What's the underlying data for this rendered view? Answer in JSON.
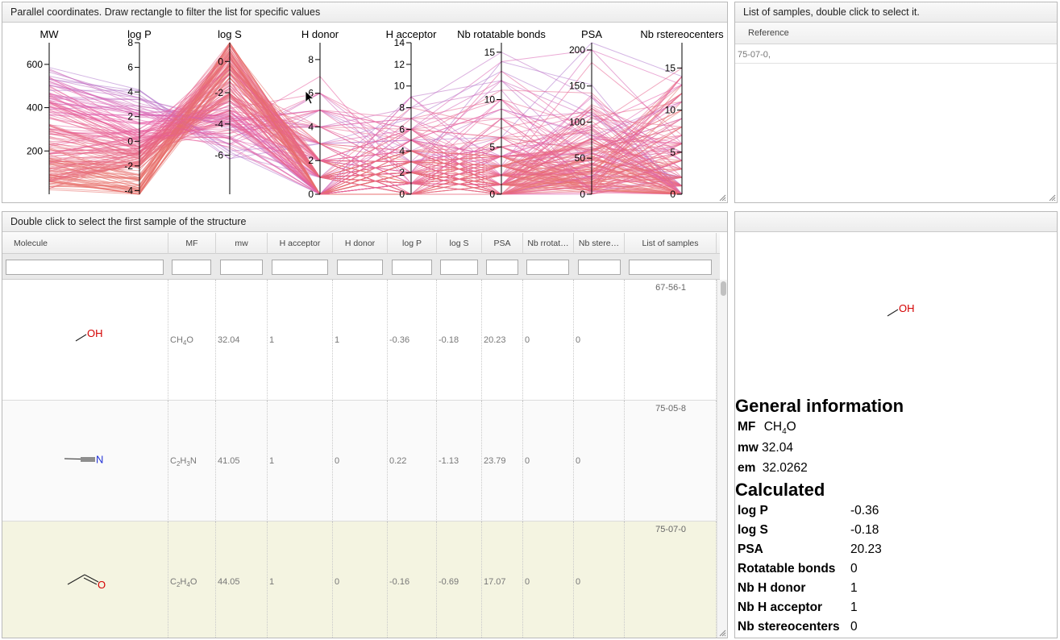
{
  "pc_panel": {
    "title": "Parallel coordinates. Draw rectangle to filter the list for specific values"
  },
  "samples_panel": {
    "title": "List of samples, double click to select it.",
    "column_header": "Reference",
    "rows": [
      "75-07-0,"
    ]
  },
  "table_panel": {
    "title": "Double click to select the first sample of the structure",
    "columns": [
      "Molecule",
      "MF",
      "mw",
      "H acceptor",
      "H donor",
      "log P",
      "log S",
      "PSA",
      "Nb rrotat…",
      "Nb stere…",
      "List of samples"
    ],
    "rows": [
      {
        "mol_label": "OH",
        "mf_parts": [
          [
            "CH",
            "4"
          ],
          [
            "O",
            ""
          ]
        ],
        "mw": "32.04",
        "h_acceptor": "1",
        "h_donor": "1",
        "logp": "-0.36",
        "logs": "-0.18",
        "psa": "20.23",
        "rot": "0",
        "stereo": "0",
        "samples": "67-56-1",
        "selected": false
      },
      {
        "mol_label": "N",
        "mf_parts": [
          [
            "C",
            "2"
          ],
          [
            "H",
            "3"
          ],
          [
            "N",
            ""
          ]
        ],
        "mw": "41.05",
        "h_acceptor": "1",
        "h_donor": "0",
        "logp": "0.22",
        "logs": "-1.13",
        "psa": "23.79",
        "rot": "0",
        "stereo": "0",
        "samples": "75-05-8",
        "selected": false
      },
      {
        "mol_label": "O",
        "mf_parts": [
          [
            "C",
            "2"
          ],
          [
            "H",
            "4"
          ],
          [
            "O",
            ""
          ]
        ],
        "mw": "44.05",
        "h_acceptor": "1",
        "h_donor": "0",
        "logp": "-0.16",
        "logs": "-0.69",
        "psa": "17.07",
        "rot": "0",
        "stereo": "0",
        "samples": "75-07-0",
        "selected": true
      }
    ]
  },
  "detail_panel": {
    "molecule_label": "OH",
    "general_title": "General information",
    "mf_label": "MF",
    "mf_parts": [
      [
        "CH",
        "4"
      ],
      [
        "O",
        ""
      ]
    ],
    "mw_label": "mw",
    "mw_value": "32.04",
    "em_label": "em",
    "em_value": "32.0262",
    "calculated_title": "Calculated",
    "calculated": [
      {
        "label": "log P",
        "value": "-0.36"
      },
      {
        "label": "log S",
        "value": "-0.18"
      },
      {
        "label": "PSA",
        "value": "20.23"
      },
      {
        "label": "Rotatable bonds",
        "value": "0"
      },
      {
        "label": "Nb H donor",
        "value": "1"
      },
      {
        "label": "Nb H acceptor",
        "value": "1"
      },
      {
        "label": "Nb stereocenters",
        "value": "0"
      }
    ]
  },
  "chart_data": {
    "type": "parallel-coordinates",
    "axes": [
      {
        "name": "MW",
        "range": [
          0,
          700
        ],
        "ticks": [
          "200",
          "400",
          "600"
        ]
      },
      {
        "name": "log P",
        "range": [
          -4.3,
          8
        ],
        "ticks": [
          "-4",
          "-2",
          "0",
          "2",
          "4",
          "6",
          "8"
        ]
      },
      {
        "name": "log S",
        "range": [
          -8.5,
          1.2
        ],
        "ticks": [
          "-6",
          "-4",
          "-2",
          "0"
        ]
      },
      {
        "name": "H donor",
        "range": [
          0,
          9
        ],
        "ticks": [
          "0",
          "2",
          "4",
          "6",
          "8"
        ]
      },
      {
        "name": "H acceptor",
        "range": [
          0,
          14
        ],
        "ticks": [
          "0",
          "2",
          "4",
          "6",
          "8",
          "10",
          "12",
          "14"
        ]
      },
      {
        "name": "Nb rotatable bonds",
        "range": [
          0,
          16
        ],
        "ticks": [
          "0",
          "5",
          "10",
          "15"
        ]
      },
      {
        "name": "PSA",
        "range": [
          0,
          210
        ],
        "ticks": [
          "0",
          "50",
          "100",
          "150",
          "200"
        ]
      },
      {
        "name": "Nb rstereocenters",
        "range": [
          0,
          18
        ],
        "ticks": [
          "0",
          "5",
          "10",
          "15"
        ]
      }
    ],
    "color_low": "#e8706a",
    "color_mid": "#e85aa8",
    "color_high": "#8c8ce6"
  }
}
